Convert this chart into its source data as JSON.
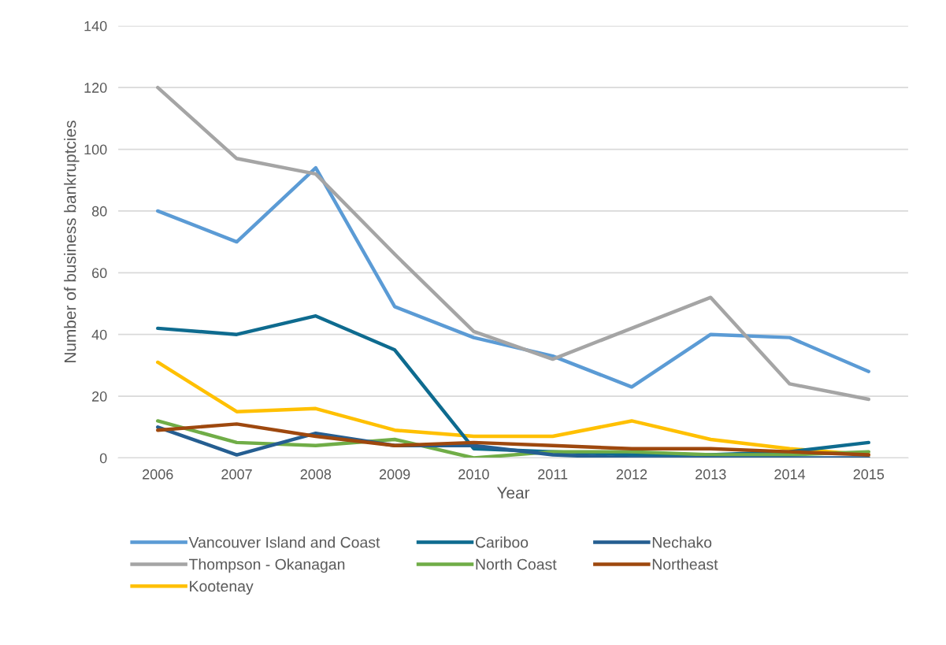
{
  "chart_data": {
    "type": "line",
    "xlabel": "Year",
    "ylabel": "Number of business bankruptcies",
    "categories": [
      "2006",
      "2007",
      "2008",
      "2009",
      "2010",
      "2011",
      "2012",
      "2013",
      "2014",
      "2015"
    ],
    "series": [
      {
        "name": "Vancouver Island and Coast",
        "color": "#5b9bd5",
        "values": [
          80,
          70,
          94,
          49,
          39,
          33,
          23,
          40,
          39,
          28
        ]
      },
      {
        "name": "Thompson - Okanagan",
        "color": "#a5a5a5",
        "values": [
          120,
          97,
          92,
          66,
          41,
          32,
          42,
          52,
          24,
          19
        ]
      },
      {
        "name": "Kootenay",
        "color": "#ffc000",
        "values": [
          31,
          15,
          16,
          9,
          7,
          7,
          12,
          6,
          3,
          1
        ]
      },
      {
        "name": "Cariboo",
        "color": "#0e6b8f",
        "values": [
          42,
          40,
          46,
          35,
          3,
          2,
          1,
          1,
          2,
          5
        ]
      },
      {
        "name": "North Coast",
        "color": "#70ad47",
        "values": [
          12,
          5,
          4,
          6,
          0,
          2,
          2,
          1,
          1,
          2
        ]
      },
      {
        "name": "Nechako",
        "color": "#255e91",
        "values": [
          10,
          1,
          8,
          4,
          4,
          1,
          0,
          0,
          0,
          0
        ]
      },
      {
        "name": "Northeast",
        "color": "#9e480e",
        "values": [
          9,
          11,
          7,
          4,
          5,
          4,
          3,
          3,
          2,
          1
        ]
      }
    ],
    "ylim": [
      0,
      140
    ],
    "yticks": [
      0,
      20,
      40,
      60,
      80,
      100,
      120,
      140
    ],
    "grid": "y",
    "legend": "bottom",
    "marker": "none",
    "line_style": "solid"
  }
}
